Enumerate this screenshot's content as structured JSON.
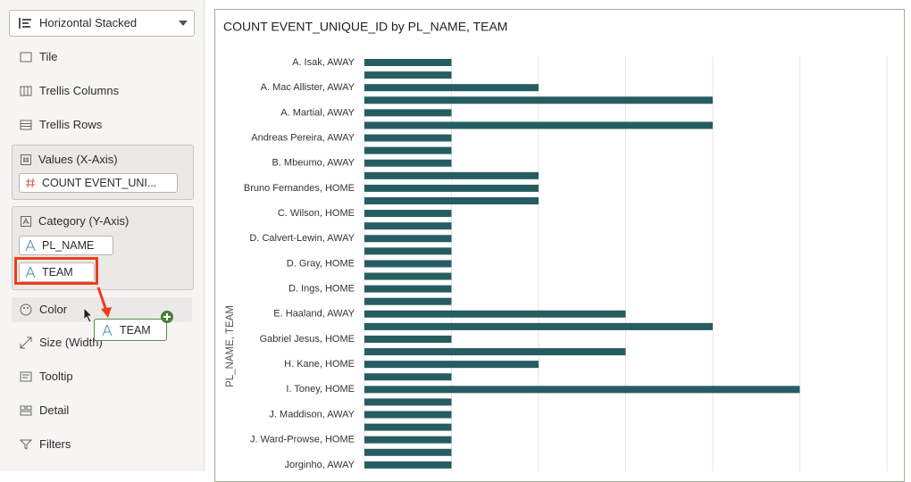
{
  "sidebar": {
    "chart_type": "Horizontal Stacked",
    "tile": "Tile",
    "trellis_columns": "Trellis Columns",
    "trellis_rows": "Trellis Rows",
    "values_section": {
      "title": "Values (X-Axis)",
      "field": "COUNT EVENT_UNI..."
    },
    "category_section": {
      "title": "Category (Y-Axis)",
      "fields": [
        "PL_NAME",
        "TEAM"
      ]
    },
    "color": "Color",
    "drag_item": "TEAM",
    "size": "Size (Width)",
    "tooltip": "Tooltip",
    "detail": "Detail",
    "filters": "Filters"
  },
  "chart_data": {
    "type": "bar",
    "orientation": "horizontal",
    "title": "COUNT EVENT_UNIQUE_ID by PL_NAME, TEAM",
    "y_label": "PL_NAME, TEAM",
    "categories": [
      "A. Isak, AWAY",
      null,
      "A. Mac Allister, AWAY",
      null,
      "A. Martial, AWAY",
      null,
      "Andreas Pereira, AWAY",
      null,
      "B. Mbeumo, AWAY",
      null,
      "Bruno Fernandes, HOME",
      null,
      "C. Wilson, HOME",
      null,
      "D. Calvert-Lewin, AWAY",
      null,
      "D. Gray, HOME",
      null,
      "D. Ings, HOME",
      null,
      "E. Haaland, AWAY",
      null,
      "Gabriel Jesus, HOME",
      null,
      "H. Kane, HOME",
      null,
      "I. Toney, HOME",
      null,
      "J. Maddison, AWAY",
      null,
      "J. Ward-Prowse, HOME",
      null,
      "Jorginho, AWAY"
    ],
    "values": [
      1,
      1,
      2,
      4,
      1,
      4,
      1,
      1,
      1,
      2,
      2,
      2,
      1,
      1,
      1,
      1,
      1,
      1,
      1,
      1,
      3,
      4,
      1,
      3,
      2,
      1,
      5,
      1,
      1,
      1,
      1,
      1,
      1
    ],
    "color": "#265d60",
    "xlim": [
      0,
      6
    ],
    "xticks": [
      0,
      1,
      2,
      3,
      4,
      5,
      6
    ],
    "grid": true
  }
}
